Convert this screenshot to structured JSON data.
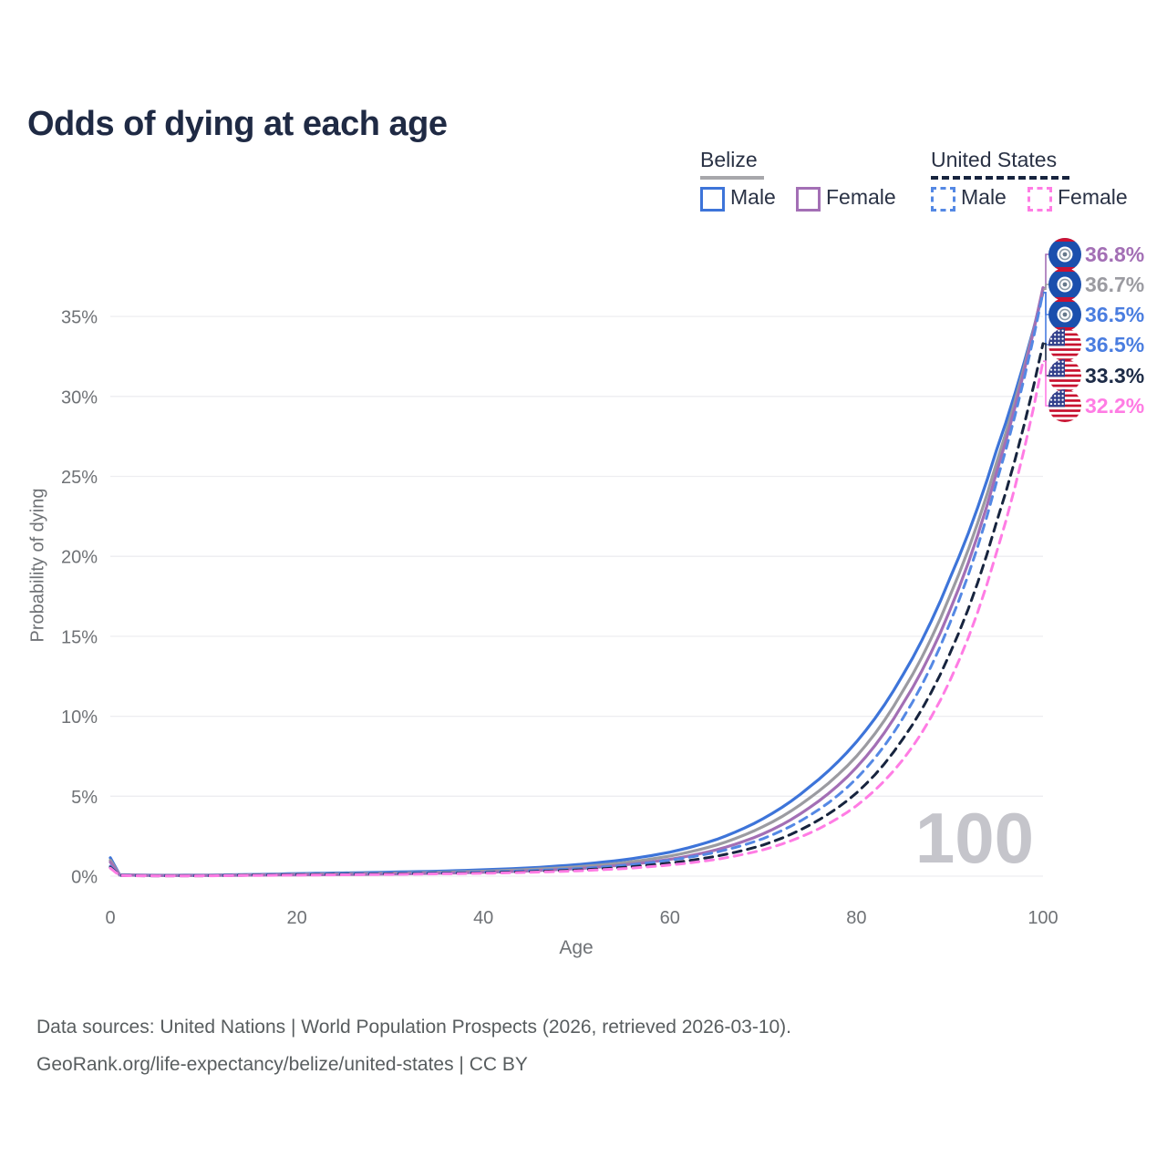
{
  "title": "Odds of dying at each age",
  "legend": {
    "groups": [
      {
        "label": "Belize",
        "line_style": "solid",
        "line_color": "#a7a7ab",
        "items": [
          {
            "label": "Male",
            "color": "#3d74d9",
            "dashed": false
          },
          {
            "label": "Female",
            "color": "#a36fb5",
            "dashed": false
          }
        ]
      },
      {
        "label": "United States",
        "line_style": "dashed",
        "line_color": "#17243e",
        "items": [
          {
            "label": "Male",
            "color": "#5488e4",
            "dashed": true
          },
          {
            "label": "Female",
            "color": "#ff7ce4",
            "dashed": true
          }
        ]
      }
    ]
  },
  "chart_data": {
    "type": "line",
    "title": "Odds of dying at each age",
    "xlabel": "Age",
    "ylabel": "Probability of dying",
    "xlim": [
      0,
      100
    ],
    "ylim": [
      0,
      38
    ],
    "x_ticks": [
      "0",
      "20",
      "40",
      "60",
      "80",
      "100"
    ],
    "y_ticks": [
      "0%",
      "5%",
      "10%",
      "15%",
      "20%",
      "25%",
      "30%",
      "35%"
    ],
    "grid": "horizontal",
    "legend_position": "top-right",
    "hovered_age_watermark": "100",
    "series": [
      {
        "id": "belize-male",
        "name": "Belize Male",
        "color": "#3d74d9",
        "dashed": false,
        "end_value_pct": 36.5,
        "points": [
          [
            0,
            1.15
          ],
          [
            1,
            0.09
          ],
          [
            5,
            0.055
          ],
          [
            10,
            0.065
          ],
          [
            15,
            0.1
          ],
          [
            20,
            0.16
          ],
          [
            25,
            0.2
          ],
          [
            30,
            0.25
          ],
          [
            35,
            0.31
          ],
          [
            40,
            0.4
          ],
          [
            45,
            0.52
          ],
          [
            50,
            0.72
          ],
          [
            55,
            1.02
          ],
          [
            60,
            1.5
          ],
          [
            65,
            2.3
          ],
          [
            70,
            3.6
          ],
          [
            75,
            5.6
          ],
          [
            80,
            8.4
          ],
          [
            85,
            12.6
          ],
          [
            90,
            18.6
          ],
          [
            95,
            26.6
          ],
          [
            100,
            36.5
          ]
        ]
      },
      {
        "id": "belize-both",
        "name": "Belize",
        "color": "#9b9ba1",
        "dashed": false,
        "end_value_pct": 36.7,
        "points": [
          [
            0,
            1.0
          ],
          [
            1,
            0.08
          ],
          [
            5,
            0.045
          ],
          [
            10,
            0.05
          ],
          [
            15,
            0.08
          ],
          [
            20,
            0.12
          ],
          [
            25,
            0.15
          ],
          [
            30,
            0.19
          ],
          [
            35,
            0.24
          ],
          [
            40,
            0.31
          ],
          [
            45,
            0.42
          ],
          [
            50,
            0.58
          ],
          [
            55,
            0.84
          ],
          [
            60,
            1.26
          ],
          [
            65,
            1.95
          ],
          [
            70,
            3.1
          ],
          [
            75,
            4.9
          ],
          [
            80,
            7.5
          ],
          [
            85,
            11.6
          ],
          [
            90,
            17.5
          ],
          [
            95,
            25.8
          ],
          [
            100,
            36.7
          ]
        ]
      },
      {
        "id": "belize-female",
        "name": "Belize Female",
        "color": "#a36fb5",
        "dashed": false,
        "end_value_pct": 36.8,
        "points": [
          [
            0,
            0.88
          ],
          [
            1,
            0.07
          ],
          [
            5,
            0.04
          ],
          [
            10,
            0.04
          ],
          [
            15,
            0.06
          ],
          [
            20,
            0.08
          ],
          [
            25,
            0.1
          ],
          [
            30,
            0.13
          ],
          [
            35,
            0.18
          ],
          [
            40,
            0.24
          ],
          [
            45,
            0.33
          ],
          [
            50,
            0.47
          ],
          [
            55,
            0.7
          ],
          [
            60,
            1.05
          ],
          [
            65,
            1.65
          ],
          [
            70,
            2.65
          ],
          [
            75,
            4.3
          ],
          [
            80,
            6.8
          ],
          [
            85,
            10.8
          ],
          [
            90,
            16.6
          ],
          [
            95,
            25.2
          ],
          [
            100,
            36.8
          ]
        ]
      },
      {
        "id": "us-male",
        "name": "United States Male",
        "color": "#5488e4",
        "dashed": true,
        "end_value_pct": 36.5,
        "points": [
          [
            0,
            0.62
          ],
          [
            1,
            0.045
          ],
          [
            5,
            0.025
          ],
          [
            10,
            0.03
          ],
          [
            15,
            0.07
          ],
          [
            20,
            0.11
          ],
          [
            25,
            0.14
          ],
          [
            30,
            0.18
          ],
          [
            35,
            0.21
          ],
          [
            40,
            0.26
          ],
          [
            45,
            0.34
          ],
          [
            50,
            0.47
          ],
          [
            55,
            0.67
          ],
          [
            60,
            1.0
          ],
          [
            65,
            1.5
          ],
          [
            70,
            2.35
          ],
          [
            75,
            3.8
          ],
          [
            80,
            6.1
          ],
          [
            85,
            9.9
          ],
          [
            90,
            15.8
          ],
          [
            95,
            24.6
          ],
          [
            100,
            36.5
          ]
        ]
      },
      {
        "id": "us-both",
        "name": "United States",
        "color": "#17243e",
        "dashed": true,
        "end_value_pct": 33.3,
        "points": [
          [
            0,
            0.56
          ],
          [
            1,
            0.04
          ],
          [
            5,
            0.02
          ],
          [
            10,
            0.025
          ],
          [
            15,
            0.06
          ],
          [
            20,
            0.09
          ],
          [
            25,
            0.11
          ],
          [
            30,
            0.14
          ],
          [
            35,
            0.17
          ],
          [
            40,
            0.21
          ],
          [
            45,
            0.28
          ],
          [
            50,
            0.38
          ],
          [
            55,
            0.55
          ],
          [
            60,
            0.82
          ],
          [
            65,
            1.25
          ],
          [
            70,
            1.95
          ],
          [
            75,
            3.2
          ],
          [
            80,
            5.2
          ],
          [
            85,
            8.6
          ],
          [
            90,
            13.9
          ],
          [
            95,
            22.1
          ],
          [
            100,
            33.3
          ]
        ]
      },
      {
        "id": "us-female",
        "name": "United States Female",
        "color": "#ff7ce4",
        "dashed": true,
        "end_value_pct": 32.2,
        "points": [
          [
            0,
            0.5
          ],
          [
            1,
            0.035
          ],
          [
            5,
            0.018
          ],
          [
            10,
            0.02
          ],
          [
            15,
            0.045
          ],
          [
            20,
            0.065
          ],
          [
            25,
            0.085
          ],
          [
            30,
            0.11
          ],
          [
            35,
            0.14
          ],
          [
            40,
            0.18
          ],
          [
            45,
            0.24
          ],
          [
            50,
            0.33
          ],
          [
            55,
            0.47
          ],
          [
            60,
            0.7
          ],
          [
            65,
            1.05
          ],
          [
            70,
            1.65
          ],
          [
            75,
            2.7
          ],
          [
            80,
            4.4
          ],
          [
            85,
            7.3
          ],
          [
            90,
            12.2
          ],
          [
            95,
            20.2
          ],
          [
            100,
            32.2
          ]
        ]
      }
    ],
    "end_labels": [
      {
        "value": "36.8%",
        "series": "belize-female",
        "color": "#a36fb5",
        "flag_icon": "belize-flag-icon"
      },
      {
        "value": "36.7%",
        "series": "belize-both",
        "color": "#9b9ba1",
        "flag_icon": "belize-flag-icon"
      },
      {
        "value": "36.5%",
        "series": "belize-male",
        "color": "#4a7de0",
        "flag_icon": "belize-flag-icon"
      },
      {
        "value": "36.5%",
        "series": "us-male",
        "color": "#4a7de0",
        "flag_icon": "us-flag-icon"
      },
      {
        "value": "33.3%",
        "series": "us-both",
        "color": "#1d2b47",
        "flag_icon": "us-flag-icon"
      },
      {
        "value": "32.2%",
        "series": "us-female",
        "color": "#ff7ce4",
        "flag_icon": "us-flag-icon"
      }
    ]
  },
  "footer": {
    "line1": "Data sources: United Nations | World Population Prospects (2026, retrieved 2026-03-10).",
    "line2": "GeoRank.org/life-expectancy/belize/united-states | CC BY"
  }
}
